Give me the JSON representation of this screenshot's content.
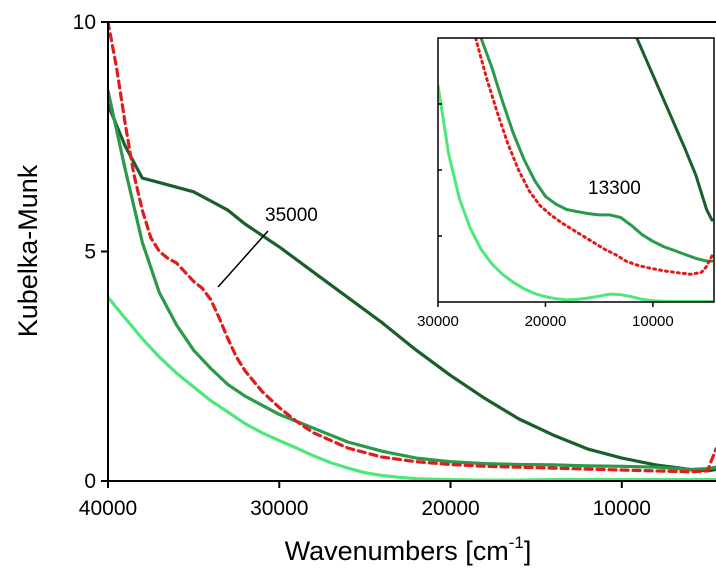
{
  "chart_data": {
    "type": "line",
    "xlabel": "Wavenumbers [cm",
    "xlabel_sup": "-1",
    "xlabel_suffix": "]",
    "ylabel": "Kubelka-Munk",
    "xlim": [
      40000,
      4500
    ],
    "ylim": [
      0,
      10
    ],
    "x_ticks": [
      {
        "value": 40000,
        "label": "40000"
      },
      {
        "value": 30000,
        "label": "30000"
      },
      {
        "value": 20000,
        "label": "20000"
      },
      {
        "value": 10000,
        "label": "10000"
      }
    ],
    "y_ticks": [
      {
        "value": 0,
        "label": "0"
      },
      {
        "value": 5,
        "label": "5"
      },
      {
        "value": 10,
        "label": "10"
      }
    ],
    "series": [
      {
        "color": "#1a5e2a",
        "width": 3.2,
        "dash": "",
        "x": [
          40000,
          39000,
          38000,
          37000,
          36000,
          35000,
          34000,
          33000,
          32000,
          31000,
          30000,
          28000,
          26000,
          24000,
          22000,
          20000,
          18000,
          16000,
          14000,
          12000,
          10000,
          8000,
          6000,
          5000,
          4500
        ],
        "y": [
          8.2,
          7.3,
          6.6,
          6.5,
          6.4,
          6.3,
          6.1,
          5.9,
          5.6,
          5.35,
          5.1,
          4.55,
          4.0,
          3.45,
          2.85,
          2.3,
          1.8,
          1.35,
          1.0,
          0.7,
          0.5,
          0.35,
          0.25,
          0.22,
          0.25
        ]
      },
      {
        "color": "#2a9a4a",
        "width": 3.2,
        "dash": "",
        "x": [
          40000,
          39000,
          38000,
          37000,
          36000,
          35000,
          34000,
          33000,
          32000,
          31000,
          30000,
          28000,
          26000,
          24000,
          22000,
          20000,
          18000,
          16000,
          14000,
          12000,
          10000,
          8000,
          6000,
          5000,
          4500
        ],
        "y": [
          8.5,
          6.8,
          5.2,
          4.1,
          3.4,
          2.85,
          2.45,
          2.1,
          1.85,
          1.65,
          1.45,
          1.15,
          0.85,
          0.65,
          0.5,
          0.42,
          0.38,
          0.36,
          0.35,
          0.33,
          0.32,
          0.3,
          0.25,
          0.27,
          0.3
        ]
      },
      {
        "color": "#e01c1c",
        "width": 3.2,
        "dash": "7,5",
        "x": [
          40000,
          39500,
          39000,
          38500,
          38000,
          37500,
          37000,
          36500,
          36000,
          35500,
          35000,
          34500,
          34000,
          33500,
          33000,
          32500,
          32000,
          31000,
          30000,
          29000,
          28000,
          26000,
          24000,
          22000,
          20000,
          18000,
          16000,
          14000,
          12000,
          10000,
          8000,
          6000,
          5000,
          4500
        ],
        "y": [
          10.0,
          9.0,
          7.8,
          6.7,
          5.9,
          5.3,
          5.0,
          4.85,
          4.75,
          4.55,
          4.35,
          4.2,
          3.95,
          3.55,
          3.1,
          2.7,
          2.4,
          1.95,
          1.6,
          1.3,
          1.05,
          0.72,
          0.52,
          0.42,
          0.36,
          0.32,
          0.3,
          0.28,
          0.26,
          0.24,
          0.22,
          0.2,
          0.22,
          0.7
        ]
      },
      {
        "color": "#4de87a",
        "width": 3.2,
        "dash": "",
        "x": [
          40000,
          39000,
          38000,
          37000,
          36000,
          35000,
          34000,
          33000,
          32000,
          31000,
          30000,
          29000,
          28000,
          27000,
          26000,
          25000,
          24000,
          23000,
          22000,
          21000,
          20000,
          18000,
          16000,
          14000,
          12000,
          10000,
          8000,
          6000,
          5000,
          4500
        ],
        "y": [
          4.0,
          3.55,
          3.1,
          2.7,
          2.35,
          2.05,
          1.75,
          1.5,
          1.25,
          1.05,
          0.88,
          0.72,
          0.55,
          0.4,
          0.28,
          0.18,
          0.12,
          0.08,
          0.05,
          0.04,
          0.03,
          0.02,
          0.02,
          0.03,
          0.03,
          0.03,
          0.03,
          0.03,
          0.03,
          0.03
        ]
      }
    ],
    "annotation": {
      "text": "35000",
      "x": 34000,
      "y": 4.4
    },
    "inset": {
      "xlim": [
        30000,
        4500
      ],
      "x_ticks": [
        {
          "value": 30000,
          "label": "30000"
        },
        {
          "value": 20000,
          "label": "20000"
        },
        {
          "value": 10000,
          "label": "10000"
        }
      ],
      "series": [
        {
          "color": "#1a5e2a",
          "width": 3,
          "dash": "",
          "x": [
            11500,
            10000,
            8500,
            7000,
            6000,
            5000,
            4500
          ],
          "y": [
            10.0,
            8.6,
            7.2,
            5.8,
            4.8,
            3.5,
            3.1
          ]
        },
        {
          "color": "#2a9a4a",
          "width": 3,
          "dash": "",
          "x": [
            26000,
            25000,
            24000,
            23000,
            22000,
            21000,
            20000,
            19000,
            18000,
            17000,
            16000,
            15000,
            14000,
            13000,
            12000,
            11000,
            10000,
            9000,
            8000,
            7000,
            6000,
            5000,
            4500
          ],
          "y": [
            10.0,
            8.9,
            7.6,
            6.4,
            5.4,
            4.6,
            4.0,
            3.7,
            3.5,
            3.42,
            3.35,
            3.3,
            3.3,
            3.2,
            2.9,
            2.55,
            2.3,
            2.1,
            1.95,
            1.8,
            1.65,
            1.55,
            1.55
          ]
        },
        {
          "color": "#e01c1c",
          "width": 3,
          "dash": "2,4",
          "x": [
            26500,
            25500,
            24500,
            23500,
            22500,
            21500,
            20500,
            19500,
            18500,
            17500,
            16500,
            15500,
            14500,
            13500,
            12500,
            11500,
            10500,
            9500,
            8500,
            7500,
            6500,
            5500,
            5000,
            4500
          ],
          "y": [
            10.0,
            8.5,
            7.2,
            6.0,
            5.0,
            4.2,
            3.65,
            3.3,
            3.0,
            2.75,
            2.5,
            2.25,
            2.0,
            1.8,
            1.55,
            1.4,
            1.3,
            1.22,
            1.15,
            1.1,
            1.05,
            1.12,
            1.35,
            1.75
          ]
        },
        {
          "color": "#4de87a",
          "width": 3,
          "dash": "",
          "x": [
            30000,
            29000,
            28000,
            27000,
            26000,
            25000,
            24000,
            23000,
            22000,
            21000,
            20000,
            19000,
            18000,
            17000,
            16000,
            15000,
            14000,
            13000,
            12000,
            11000,
            10000,
            9000,
            8000,
            7000,
            6000,
            5000,
            4500
          ],
          "y": [
            8.2,
            5.6,
            3.9,
            2.8,
            2.0,
            1.45,
            1.05,
            0.75,
            0.5,
            0.32,
            0.2,
            0.12,
            0.08,
            0.1,
            0.15,
            0.22,
            0.3,
            0.28,
            0.2,
            0.1,
            0.05,
            0.03,
            0.02,
            0.02,
            0.02,
            0.02,
            0.02
          ]
        }
      ],
      "annotation": {
        "text": "13300"
      }
    }
  }
}
